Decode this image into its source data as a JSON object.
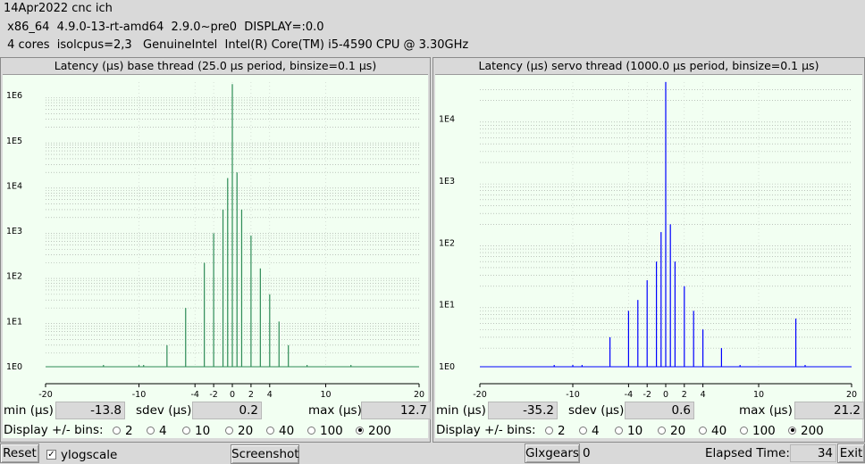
{
  "header": {
    "line1": "14Apr2022 cnc ich",
    "line2": " x86_64  4.9.0-13-rt-amd64  2.9.0~pre0  DISPLAY=:0.0",
    "line3": " 4 cores  isolcpus=2,3   GenuineIntel  Intel(R) Core(TM) i5-4590 CPU @ 3.30GHz"
  },
  "panels": [
    {
      "title": "Latency (µs) base thread (25.0 µs period, binsize=0.1 µs)",
      "color": "#2e8b57",
      "min_label": "min (µs)",
      "min": "-13.8",
      "sdev_label": "sdev (µs)",
      "sdev": "0.2",
      "max_label": "max (µs)",
      "max": "12.7",
      "bins_label": "Display +/- bins:",
      "bins_options": [
        "2",
        "4",
        "10",
        "20",
        "40",
        "100",
        "200"
      ],
      "bins_selected": "200"
    },
    {
      "title": "Latency (µs) servo thread (1000.0 µs period, binsize=0.1 µs)",
      "color": "#0000ff",
      "min_label": "min (µs)",
      "min": "-35.2",
      "sdev_label": "sdev (µs)",
      "sdev": "0.6",
      "max_label": "max (µs)",
      "max": "21.2",
      "bins_label": "Display +/- bins:",
      "bins_options": [
        "2",
        "4",
        "10",
        "20",
        "40",
        "100",
        "200"
      ],
      "bins_selected": "200"
    }
  ],
  "chart_data": [
    {
      "type": "bar",
      "title": "Latency (µs) base thread (25.0 µs period, binsize=0.1 µs)",
      "x_ticks": [
        "-20",
        "-10",
        "-4",
        "-2",
        "0",
        "2",
        "4",
        "10",
        "20"
      ],
      "y_ticks": [
        "1E0",
        "1E1",
        "1E2",
        "1E3",
        "1E4",
        "1E5",
        "1E6"
      ],
      "xlim": [
        -20,
        20
      ],
      "ylim_log10": [
        0,
        6.3
      ],
      "log_scale": true,
      "grid": true,
      "color": "#2e8b57",
      "bins": [
        {
          "x": -13.8,
          "count": 1
        },
        {
          "x": -10.0,
          "count": 1
        },
        {
          "x": -9.5,
          "count": 1
        },
        {
          "x": -7.0,
          "count": 3
        },
        {
          "x": -5.0,
          "count": 20
        },
        {
          "x": -3.0,
          "count": 200
        },
        {
          "x": -2.0,
          "count": 900
        },
        {
          "x": -1.0,
          "count": 3000
        },
        {
          "x": -0.5,
          "count": 15000
        },
        {
          "x": 0.0,
          "count": 1800000
        },
        {
          "x": 0.5,
          "count": 20000
        },
        {
          "x": 1.0,
          "count": 3000
        },
        {
          "x": 2.0,
          "count": 800
        },
        {
          "x": 3.0,
          "count": 150
        },
        {
          "x": 4.0,
          "count": 40
        },
        {
          "x": 5.0,
          "count": 10
        },
        {
          "x": 6.0,
          "count": 3
        },
        {
          "x": 8.0,
          "count": 1
        },
        {
          "x": 12.7,
          "count": 1
        }
      ]
    },
    {
      "type": "bar",
      "title": "Latency (µs) servo thread (1000.0 µs period, binsize=0.1 µs)",
      "x_ticks": [
        "-20",
        "-10",
        "-4",
        "-2",
        "0",
        "2",
        "4",
        "10",
        "20"
      ],
      "y_ticks": [
        "1E0",
        "1E1",
        "1E2",
        "1E3",
        "1E4"
      ],
      "xlim": [
        -20,
        20
      ],
      "ylim_log10": [
        0,
        4.6
      ],
      "log_scale": true,
      "grid": true,
      "color": "#0000ff",
      "bins": [
        {
          "x": -12.0,
          "count": 1
        },
        {
          "x": -10.0,
          "count": 1
        },
        {
          "x": -9.0,
          "count": 1
        },
        {
          "x": -6.0,
          "count": 3
        },
        {
          "x": -4.0,
          "count": 8
        },
        {
          "x": -3.0,
          "count": 12
        },
        {
          "x": -2.0,
          "count": 25
        },
        {
          "x": -1.0,
          "count": 50
        },
        {
          "x": -0.5,
          "count": 150
        },
        {
          "x": 0.0,
          "count": 40000
        },
        {
          "x": 0.5,
          "count": 200
        },
        {
          "x": 1.0,
          "count": 50
        },
        {
          "x": 2.0,
          "count": 20
        },
        {
          "x": 3.0,
          "count": 8
        },
        {
          "x": 4.0,
          "count": 4
        },
        {
          "x": 6.0,
          "count": 2
        },
        {
          "x": 8.0,
          "count": 1
        },
        {
          "x": 14.0,
          "count": 6
        },
        {
          "x": 15.0,
          "count": 1
        }
      ]
    }
  ],
  "footer": {
    "reset": "Reset",
    "ylogscale": "ylogscale",
    "ylogscale_checked": true,
    "screenshot": "Screenshot",
    "glxgears": "Glxgears",
    "glxgears_value": "0",
    "elapsed_label": "Elapsed Time:",
    "elapsed": "34",
    "exit": "Exit"
  }
}
